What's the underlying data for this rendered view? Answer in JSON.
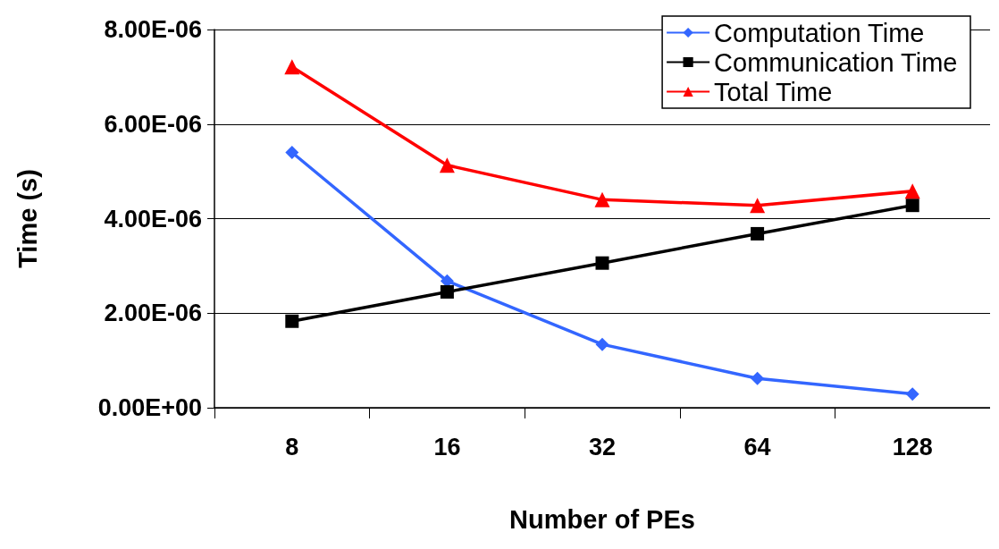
{
  "chart_data": {
    "type": "line",
    "xlabel": "Number of PEs",
    "ylabel": "Time (s)",
    "categories": [
      "8",
      "16",
      "32",
      "64",
      "128"
    ],
    "series": [
      {
        "name": "Computation Time",
        "color": "#3366ff",
        "marker": "diamond",
        "values": [
          5.4e-06,
          2.68e-06,
          1.34e-06,
          6.2e-07,
          2.9e-07
        ]
      },
      {
        "name": "Communication Time",
        "color": "#000000",
        "marker": "square",
        "values": [
          1.83e-06,
          2.45e-06,
          3.06e-06,
          3.68e-06,
          4.28e-06
        ]
      },
      {
        "name": "Total Time",
        "color": "#ff0000",
        "marker": "triangle",
        "values": [
          7.21e-06,
          5.13e-06,
          4.4e-06,
          4.28e-06,
          4.58e-06
        ]
      }
    ],
    "ylim": [
      0,
      8e-06
    ],
    "yticks": [
      {
        "value": 0,
        "label": "0.00E+00"
      },
      {
        "value": 2e-06,
        "label": "2.00E-06"
      },
      {
        "value": 4e-06,
        "label": "4.00E-06"
      },
      {
        "value": 6e-06,
        "label": "6.00E-06"
      },
      {
        "value": 8e-06,
        "label": "8.00E-06"
      }
    ],
    "grid": "y",
    "legend": "top right",
    "line_style": "solid"
  }
}
